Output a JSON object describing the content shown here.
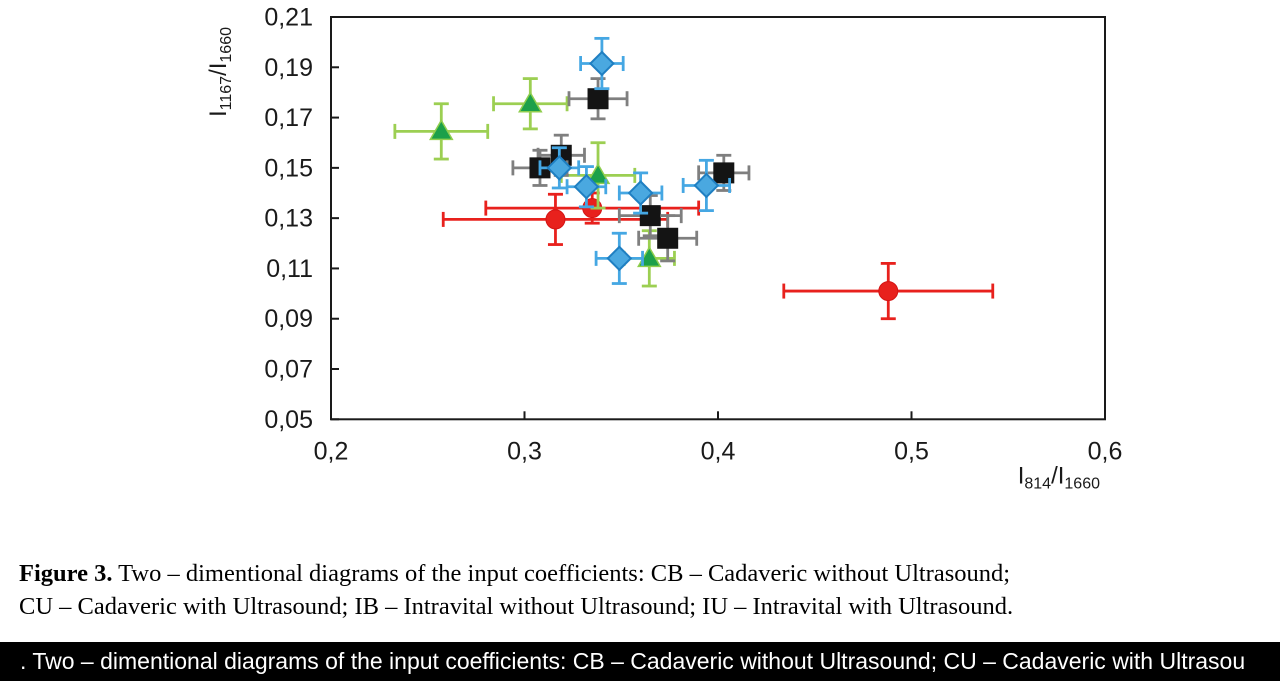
{
  "figure": {
    "caption_bold": "Figure 3.",
    "caption_line1": " Two – dimentional diagrams of the input coefficients: CB – Cadaveric without Ultrasound;",
    "caption_line2": "CU – Cadaveric with Ultrasound; IB – Intravital without Ultrasound; IU – Intravital with Ultrasound."
  },
  "statusbar": {
    "text": ". Two – dimentional diagrams of the input coefficients: CB – Cadaveric without Ultrasound; CU – Cadaveric with Ultrasou",
    "bg": "#000000",
    "fg": "#ffffff"
  },
  "chart_data": {
    "type": "scatter",
    "title": "",
    "grid": false,
    "legend": "none",
    "xlabel_parts": [
      [
        "I",
        0
      ],
      [
        "814",
        1
      ],
      [
        "/I",
        0
      ],
      [
        "1660",
        1
      ]
    ],
    "ylabel_parts": [
      [
        "I",
        0
      ],
      [
        "1167",
        1
      ],
      [
        "/I",
        0
      ],
      [
        "1660",
        1
      ]
    ],
    "xlim": [
      0.2,
      0.6
    ],
    "ylim": [
      0.05,
      0.21
    ],
    "xticks": {
      "values": [
        0.2,
        0.3,
        0.4,
        0.5,
        0.6
      ],
      "labels": [
        "0,2",
        "0,3",
        "0,4",
        "0,5",
        "0,6"
      ]
    },
    "yticks": {
      "values": [
        0.21,
        0.19,
        0.17,
        0.15,
        0.13,
        0.11,
        0.09,
        0.07,
        0.05
      ],
      "labels": [
        "0,21",
        "0,19",
        "0,17",
        "0,15",
        "0,13",
        "0,11",
        "0,09",
        "0,07",
        "0,05"
      ]
    },
    "axis_color": "#1a1a1a",
    "series": [
      {
        "name": "red-circles",
        "marker": "circle",
        "color": "#e8211d",
        "marker_stroke": "#d41414",
        "error_color": "#e8211d",
        "points": [
          {
            "x": 0.316,
            "y": 0.1295,
            "xe": 0.058,
            "ye": 0.01
          },
          {
            "x": 0.335,
            "y": 0.134,
            "xe": 0.055,
            "ye": 0.006
          },
          {
            "x": 0.488,
            "y": 0.101,
            "xe": 0.054,
            "ye": 0.011
          }
        ]
      },
      {
        "name": "green-triangles",
        "marker": "triangle",
        "color": "#1ca04a",
        "marker_stroke": "#8fce4e",
        "error_color": "#9ccf52",
        "points": [
          {
            "x": 0.257,
            "y": 0.1645,
            "xe": 0.024,
            "ye": 0.011
          },
          {
            "x": 0.303,
            "y": 0.1755,
            "xe": 0.019,
            "ye": 0.01
          },
          {
            "x": 0.338,
            "y": 0.147,
            "xe": 0.019,
            "ye": 0.013
          },
          {
            "x": 0.3645,
            "y": 0.114,
            "xe": 0.013,
            "ye": 0.011
          }
        ]
      },
      {
        "name": "black-squares",
        "marker": "square",
        "color": "#141414",
        "marker_stroke": "#141414",
        "error_color": "#7f7f7f",
        "points": [
          {
            "x": 0.338,
            "y": 0.1775,
            "xe": 0.015,
            "ye": 0.008
          },
          {
            "x": 0.319,
            "y": 0.155,
            "xe": 0.012,
            "ye": 0.008
          },
          {
            "x": 0.308,
            "y": 0.15,
            "xe": 0.014,
            "ye": 0.007
          },
          {
            "x": 0.403,
            "y": 0.148,
            "xe": 0.013,
            "ye": 0.007
          },
          {
            "x": 0.365,
            "y": 0.131,
            "xe": 0.016,
            "ye": 0.008
          },
          {
            "x": 0.374,
            "y": 0.122,
            "xe": 0.015,
            "ye": 0.009
          }
        ]
      },
      {
        "name": "blue-diamonds",
        "marker": "diamond",
        "color": "#4aa8e0",
        "marker_stroke": "#1f7fc2",
        "error_color": "#45a7e3",
        "points": [
          {
            "x": 0.34,
            "y": 0.1915,
            "xe": 0.011,
            "ye": 0.01
          },
          {
            "x": 0.318,
            "y": 0.15,
            "xe": 0.01,
            "ye": 0.008
          },
          {
            "x": 0.332,
            "y": 0.1425,
            "xe": 0.01,
            "ye": 0.008
          },
          {
            "x": 0.36,
            "y": 0.14,
            "xe": 0.011,
            "ye": 0.008
          },
          {
            "x": 0.394,
            "y": 0.143,
            "xe": 0.012,
            "ye": 0.01
          },
          {
            "x": 0.349,
            "y": 0.114,
            "xe": 0.012,
            "ye": 0.01
          }
        ]
      }
    ]
  }
}
